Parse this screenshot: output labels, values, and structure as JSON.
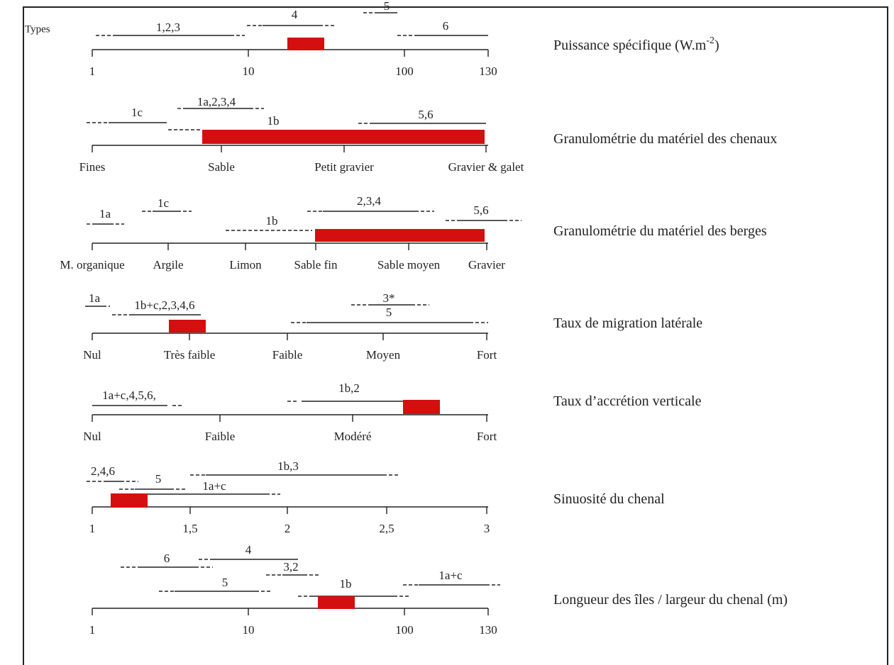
{
  "types_label": "Types",
  "rows": [
    {
      "title": "Puissance spécifique (W.m",
      "title_sup": "-2",
      "title_end": ")",
      "ticks": [
        "1",
        "10",
        "100",
        "130"
      ],
      "ranges": [
        "1,2,3",
        "4",
        "5",
        "6"
      ]
    },
    {
      "title": "Granulométrie du matériel des chenaux",
      "ticks": [
        "Fines",
        "Sable",
        "Petit gravier",
        "Gravier & galet"
      ],
      "ranges": [
        "1c",
        "1a,2,3,4",
        "1b",
        "5,6"
      ]
    },
    {
      "title": "Granulométrie du matériel des berges",
      "ticks": [
        "M. organique",
        "Argile",
        "Limon",
        "Sable fin",
        "Sable moyen",
        "Gravier"
      ],
      "ranges": [
        "1a",
        "1c",
        "1b",
        "2,3,4",
        "5,6"
      ]
    },
    {
      "title": "Taux de migration latérale",
      "ticks": [
        "Nul",
        "Très faible",
        "Faible",
        "Moyen",
        "Fort"
      ],
      "ranges": [
        "1a",
        "1b+c,2,3,4,6",
        "3*",
        "5"
      ]
    },
    {
      "title": "Taux d’accrétion verticale",
      "ticks": [
        "Nul",
        "Faible",
        "Modéré",
        "Fort"
      ],
      "ranges": [
        "1a+c,4,5,6,",
        "1b,2"
      ]
    },
    {
      "title": "Sinuosité du chenal",
      "ticks": [
        "1",
        "1,5",
        "2",
        "2,5",
        "3"
      ],
      "ranges": [
        "2,4,6",
        "5",
        "1a+c",
        "1b,3"
      ]
    },
    {
      "title": "Longueur des îles / largeur du chenal (m)",
      "ticks": [
        "1",
        "10",
        "100",
        "130"
      ],
      "ranges": [
        "6",
        "4",
        "3,2",
        "5",
        "1b",
        "1a+c"
      ]
    }
  ]
}
